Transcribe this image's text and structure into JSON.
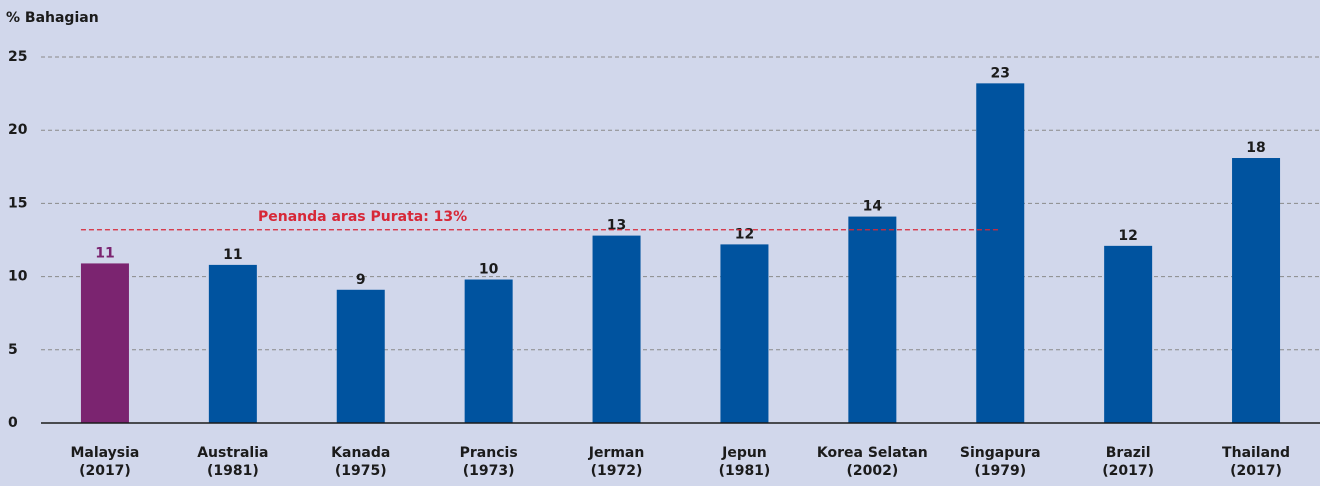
{
  "chart_data": {
    "type": "bar",
    "ylabel": "% Bahagian",
    "categories": [
      [
        "Malaysia",
        "(2017)"
      ],
      [
        "Australia",
        "(1981)"
      ],
      [
        "Kanada",
        "(1975)"
      ],
      [
        "Prancis",
        "(1973)"
      ],
      [
        "Jerman",
        "(1972)"
      ],
      [
        "Jepun",
        "(1981)"
      ],
      [
        "Korea Selatan",
        "(2002)"
      ],
      [
        "Singapura",
        "(1979)"
      ],
      [
        "Brazil",
        "(2017)"
      ],
      [
        "Thailand",
        "(2017)"
      ]
    ],
    "values": [
      10.9,
      10.8,
      9.1,
      9.8,
      12.8,
      12.2,
      14.1,
      23.2,
      12.1,
      18.1
    ],
    "value_labels": [
      "11",
      "11",
      "9",
      "10",
      "13",
      "12",
      "14",
      "23",
      "12",
      "18"
    ],
    "colors": [
      "#7b2470",
      "#00539f",
      "#00539f",
      "#00539f",
      "#00539f",
      "#00539f",
      "#00539f",
      "#00539f",
      "#00539f",
      "#00539f"
    ],
    "benchmark": {
      "label": "Penanda aras Purata: 13%",
      "value": 13.2,
      "color": "#d72838"
    },
    "ylim": [
      0,
      25
    ],
    "yticks": [
      0,
      5,
      10,
      15,
      20,
      25
    ],
    "grid": true
  }
}
